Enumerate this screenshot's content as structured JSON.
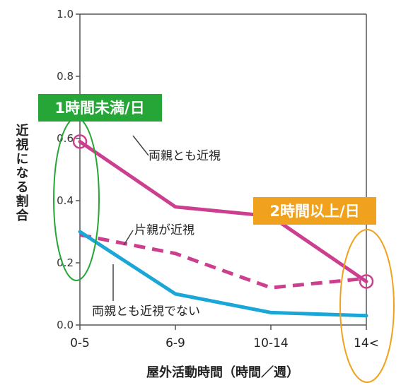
{
  "chart_data": {
    "type": "line",
    "categories": [
      "0-5",
      "6-9",
      "10-14",
      "14<"
    ],
    "ylim": [
      0,
      1.0
    ],
    "y_ticks": [
      "0.0",
      "0.2",
      "0.4",
      "0.6",
      "0.8",
      "1.0"
    ],
    "xlabel": "屋外活動時間（時間／週）",
    "ylabel": "近視になる割合",
    "grid": false,
    "series": [
      {
        "name": "両親とも近視",
        "values": [
          0.59,
          0.38,
          0.35,
          0.14
        ],
        "style": "solid",
        "color": "#cc3f8e"
      },
      {
        "name": "片親が近視",
        "values": [
          0.29,
          0.23,
          0.12,
          0.15
        ],
        "style": "dashed",
        "color": "#cc3f8e"
      },
      {
        "name": "両親とも近視でない",
        "values": [
          0.3,
          0.1,
          0.04,
          0.03
        ],
        "style": "solid",
        "color": "#1aa6d6"
      }
    ],
    "annotations": [
      {
        "text": "1時間未満/日",
        "color": "#25a637",
        "target_category": "0-5"
      },
      {
        "text": "2時間以上/日",
        "color": "#f0a21e",
        "target_category": "14<"
      }
    ],
    "colors": {
      "axis": "#555555",
      "green": "#25a637",
      "orange": "#f0a21e",
      "magenta": "#cc3f8e",
      "blue": "#1aa6d6"
    }
  }
}
